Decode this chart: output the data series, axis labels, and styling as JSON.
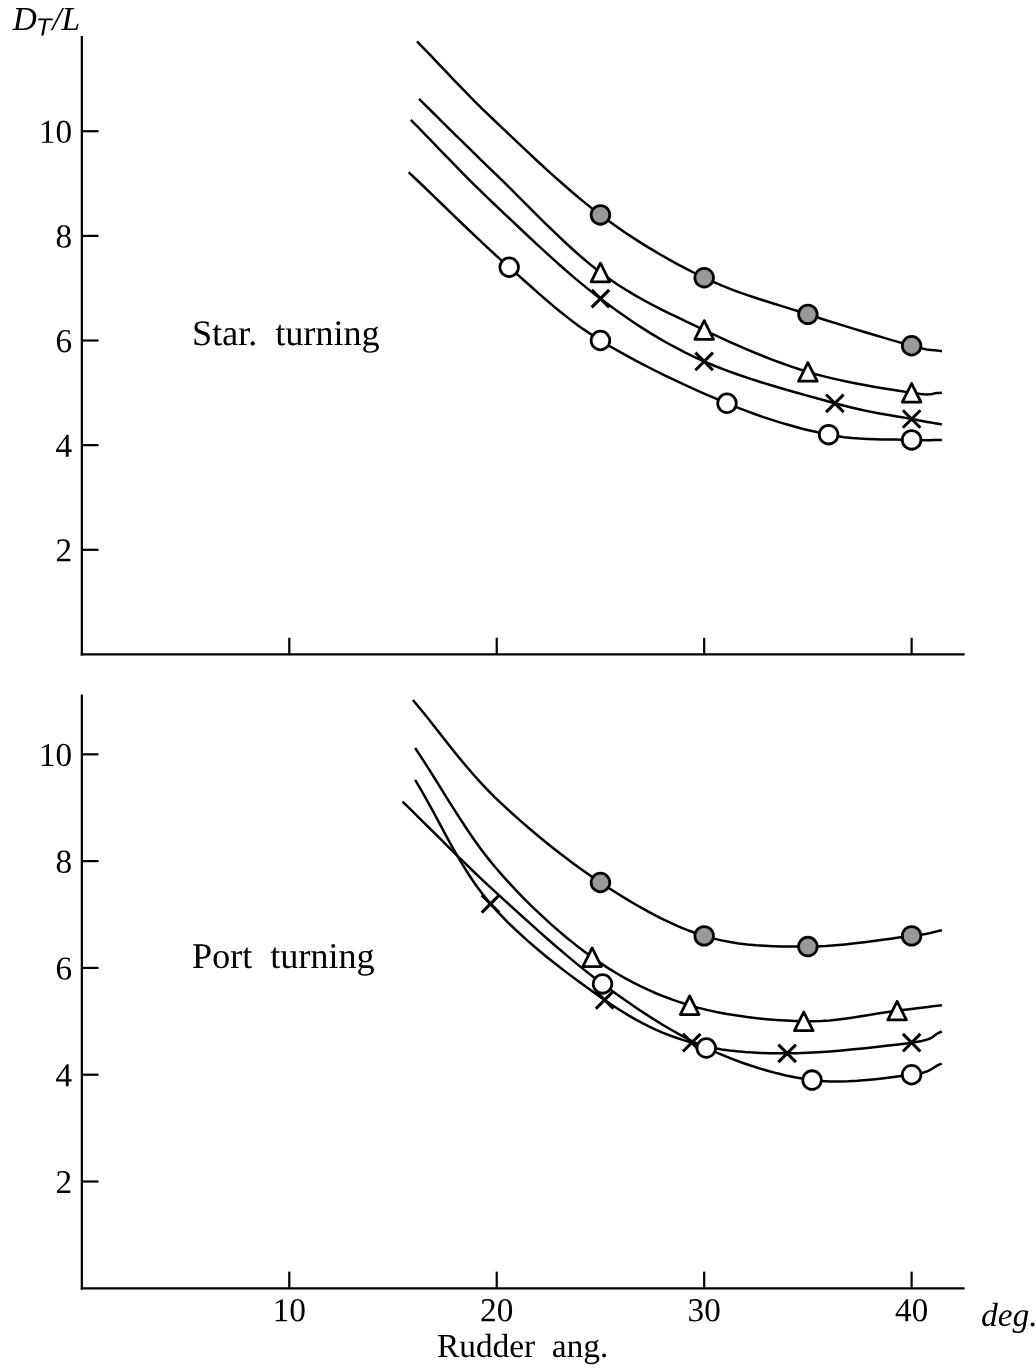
{
  "chart_data": [
    {
      "type": "line",
      "ylabel": "D$_{T}$/L",
      "annotations": [
        "Star.  turning"
      ],
      "xlim": [
        0,
        42.5
      ],
      "ylim": [
        0,
        11.8
      ],
      "xticks": [
        {
          "value": 10,
          "label": null
        },
        {
          "value": 20,
          "label": null
        },
        {
          "value": 30,
          "label": null
        },
        {
          "value": 40,
          "label": null
        }
      ],
      "yticks": [
        2,
        4,
        6,
        8,
        10
      ],
      "tick_labels": "y",
      "grid": false,
      "legend": false,
      "series": [
        {
          "color": "#000000",
          "x": [
            16.2,
            19.9,
            25,
            30,
            35,
            40,
            41.4
          ],
          "values": [
            11.7,
            10.2,
            8.4,
            7.2,
            6.5,
            5.9,
            5.8
          ]
        },
        {
          "color": "#000000",
          "x": [
            16.3,
            19.9,
            25,
            30,
            35,
            40,
            41.4
          ],
          "values": [
            10.6,
            9.2,
            7.3,
            6.2,
            5.4,
            5.0,
            5.0
          ]
        },
        {
          "color": "#000000",
          "x": [
            15.9,
            19.9,
            25,
            30,
            36.3,
            40,
            41.4
          ],
          "values": [
            10.2,
            8.6,
            6.8,
            5.6,
            4.8,
            4.5,
            4.4
          ]
        },
        {
          "color": "#000000",
          "x": [
            15.8,
            20.6,
            25,
            31.1,
            36,
            40,
            41.4
          ],
          "values": [
            9.2,
            7.4,
            6.0,
            4.8,
            4.2,
            4.1,
            4.1
          ]
        },
        {
          "type": "scatter",
          "marker": "circle",
          "color": "#999999",
          "x": [
            25,
            30,
            35,
            40
          ],
          "values": [
            8.4,
            7.2,
            6.5,
            5.9
          ]
        },
        {
          "type": "scatter",
          "marker": "triangle",
          "color": "#ffffff",
          "x": [
            25,
            30,
            35,
            40
          ],
          "values": [
            7.3,
            6.2,
            5.4,
            5.0
          ]
        },
        {
          "type": "scatter",
          "marker": "cross",
          "color": "#000000",
          "x": [
            25,
            30,
            36.3,
            40
          ],
          "values": [
            6.8,
            5.6,
            4.8,
            4.5
          ]
        },
        {
          "type": "scatter",
          "marker": "circle",
          "color": "#ffffff",
          "x": [
            20.6,
            25,
            31.1,
            36,
            40
          ],
          "values": [
            7.4,
            6.0,
            4.8,
            4.2,
            4.1
          ]
        }
      ]
    },
    {
      "type": "line",
      "xlabel": "Rudder  ang.",
      "annotations": [
        "Port  turning",
        "deg."
      ],
      "xlim": [
        0,
        42.5
      ],
      "ylim": [
        0,
        11.1
      ],
      "xticks": [
        10,
        20,
        30,
        40
      ],
      "yticks": [
        2,
        4,
        6,
        8,
        10
      ],
      "grid": false,
      "legend": false,
      "series": [
        {
          "color": "#000000",
          "x": [
            16.0,
            19.9,
            25,
            30,
            35,
            40,
            41.4
          ],
          "values": [
            11.0,
            9.2,
            7.6,
            6.6,
            6.4,
            6.6,
            6.7
          ]
        },
        {
          "color": "#000000",
          "x": [
            16.1,
            19.9,
            24.6,
            29.3,
            34.8,
            39.3,
            41.4
          ],
          "values": [
            10.1,
            7.9,
            6.2,
            5.3,
            5.0,
            5.2,
            5.3
          ]
        },
        {
          "color": "#000000",
          "x": [
            16.1,
            19.7,
            25.2,
            29.4,
            34.0,
            40,
            41.4
          ],
          "values": [
            9.5,
            7.2,
            5.4,
            4.6,
            4.4,
            4.6,
            4.8
          ]
        },
        {
          "color": "#000000",
          "x": [
            15.5,
            20,
            25.1,
            30.1,
            35.2,
            40,
            41.4
          ],
          "values": [
            9.1,
            7.4,
            5.7,
            4.5,
            3.9,
            4.0,
            4.2
          ]
        },
        {
          "type": "scatter",
          "marker": "circle",
          "color": "#999999",
          "x": [
            25,
            30,
            35,
            40
          ],
          "values": [
            7.6,
            6.6,
            6.4,
            6.6
          ]
        },
        {
          "type": "scatter",
          "marker": "triangle",
          "color": "#ffffff",
          "x": [
            24.6,
            29.3,
            34.8,
            39.3
          ],
          "values": [
            6.2,
            5.3,
            5.0,
            5.2
          ]
        },
        {
          "type": "scatter",
          "marker": "cross",
          "color": "#000000",
          "x": [
            19.7,
            25.2,
            29.4,
            34.0,
            40
          ],
          "values": [
            7.2,
            5.4,
            4.6,
            4.4,
            4.6
          ]
        },
        {
          "type": "scatter",
          "marker": "circle",
          "color": "#ffffff",
          "x": [
            25.1,
            30.1,
            35.2,
            40
          ],
          "values": [
            5.7,
            4.5,
            3.9,
            4.0
          ]
        }
      ]
    }
  ]
}
